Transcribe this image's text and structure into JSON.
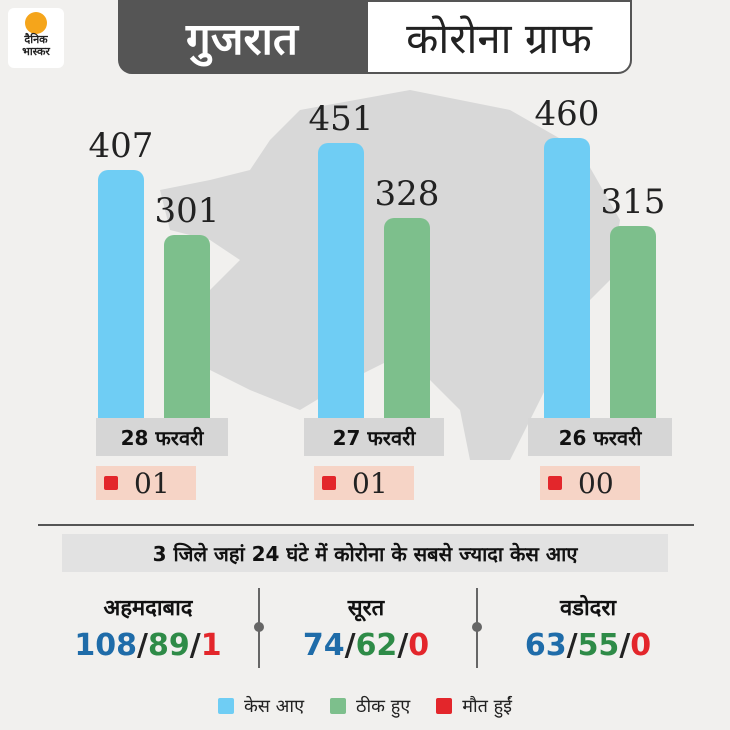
{
  "logo": {
    "line1": "दैनिक",
    "line2": "भास्कर"
  },
  "header": {
    "state": "गुजरात",
    "title": "कोरोना ग्राफ"
  },
  "chart_data": {
    "type": "bar",
    "categories": [
      "28 फरवरी",
      "27 फरवरी",
      "26 फरवरी"
    ],
    "series": [
      {
        "name": "केस आए",
        "values": [
          407,
          451,
          460
        ],
        "color": "#6fcdf4"
      },
      {
        "name": "ठीक हुए",
        "values": [
          301,
          328,
          315
        ],
        "color": "#7dbf8c"
      },
      {
        "name": "मौत हुईं",
        "values": [
          "01",
          "01",
          "00"
        ],
        "color": "#e3262b"
      }
    ],
    "value_labels": {
      "cases": [
        "407",
        "451",
        "460"
      ],
      "recovered": [
        "301",
        "328",
        "315"
      ],
      "deaths": [
        "01",
        "01",
        "00"
      ]
    },
    "ylim": [
      0,
      500
    ]
  },
  "subtitle": "3 जिले जहां 24 घंटे में कोरोना के सबसे ज्यादा केस आए",
  "districts": [
    {
      "name": "अहमदाबाद",
      "cases": "108",
      "recovered": "89",
      "deaths": "1"
    },
    {
      "name": "सूरत",
      "cases": "74",
      "recovered": "62",
      "deaths": "0"
    },
    {
      "name": "वडोदरा",
      "cases": "63",
      "recovered": "55",
      "deaths": "0"
    }
  ],
  "legend": [
    {
      "label": "केस आए",
      "color": "#6fcdf4"
    },
    {
      "label": "ठीक हुए",
      "color": "#7dbf8c"
    },
    {
      "label": "मौत हुईं",
      "color": "#e3262b"
    }
  ]
}
